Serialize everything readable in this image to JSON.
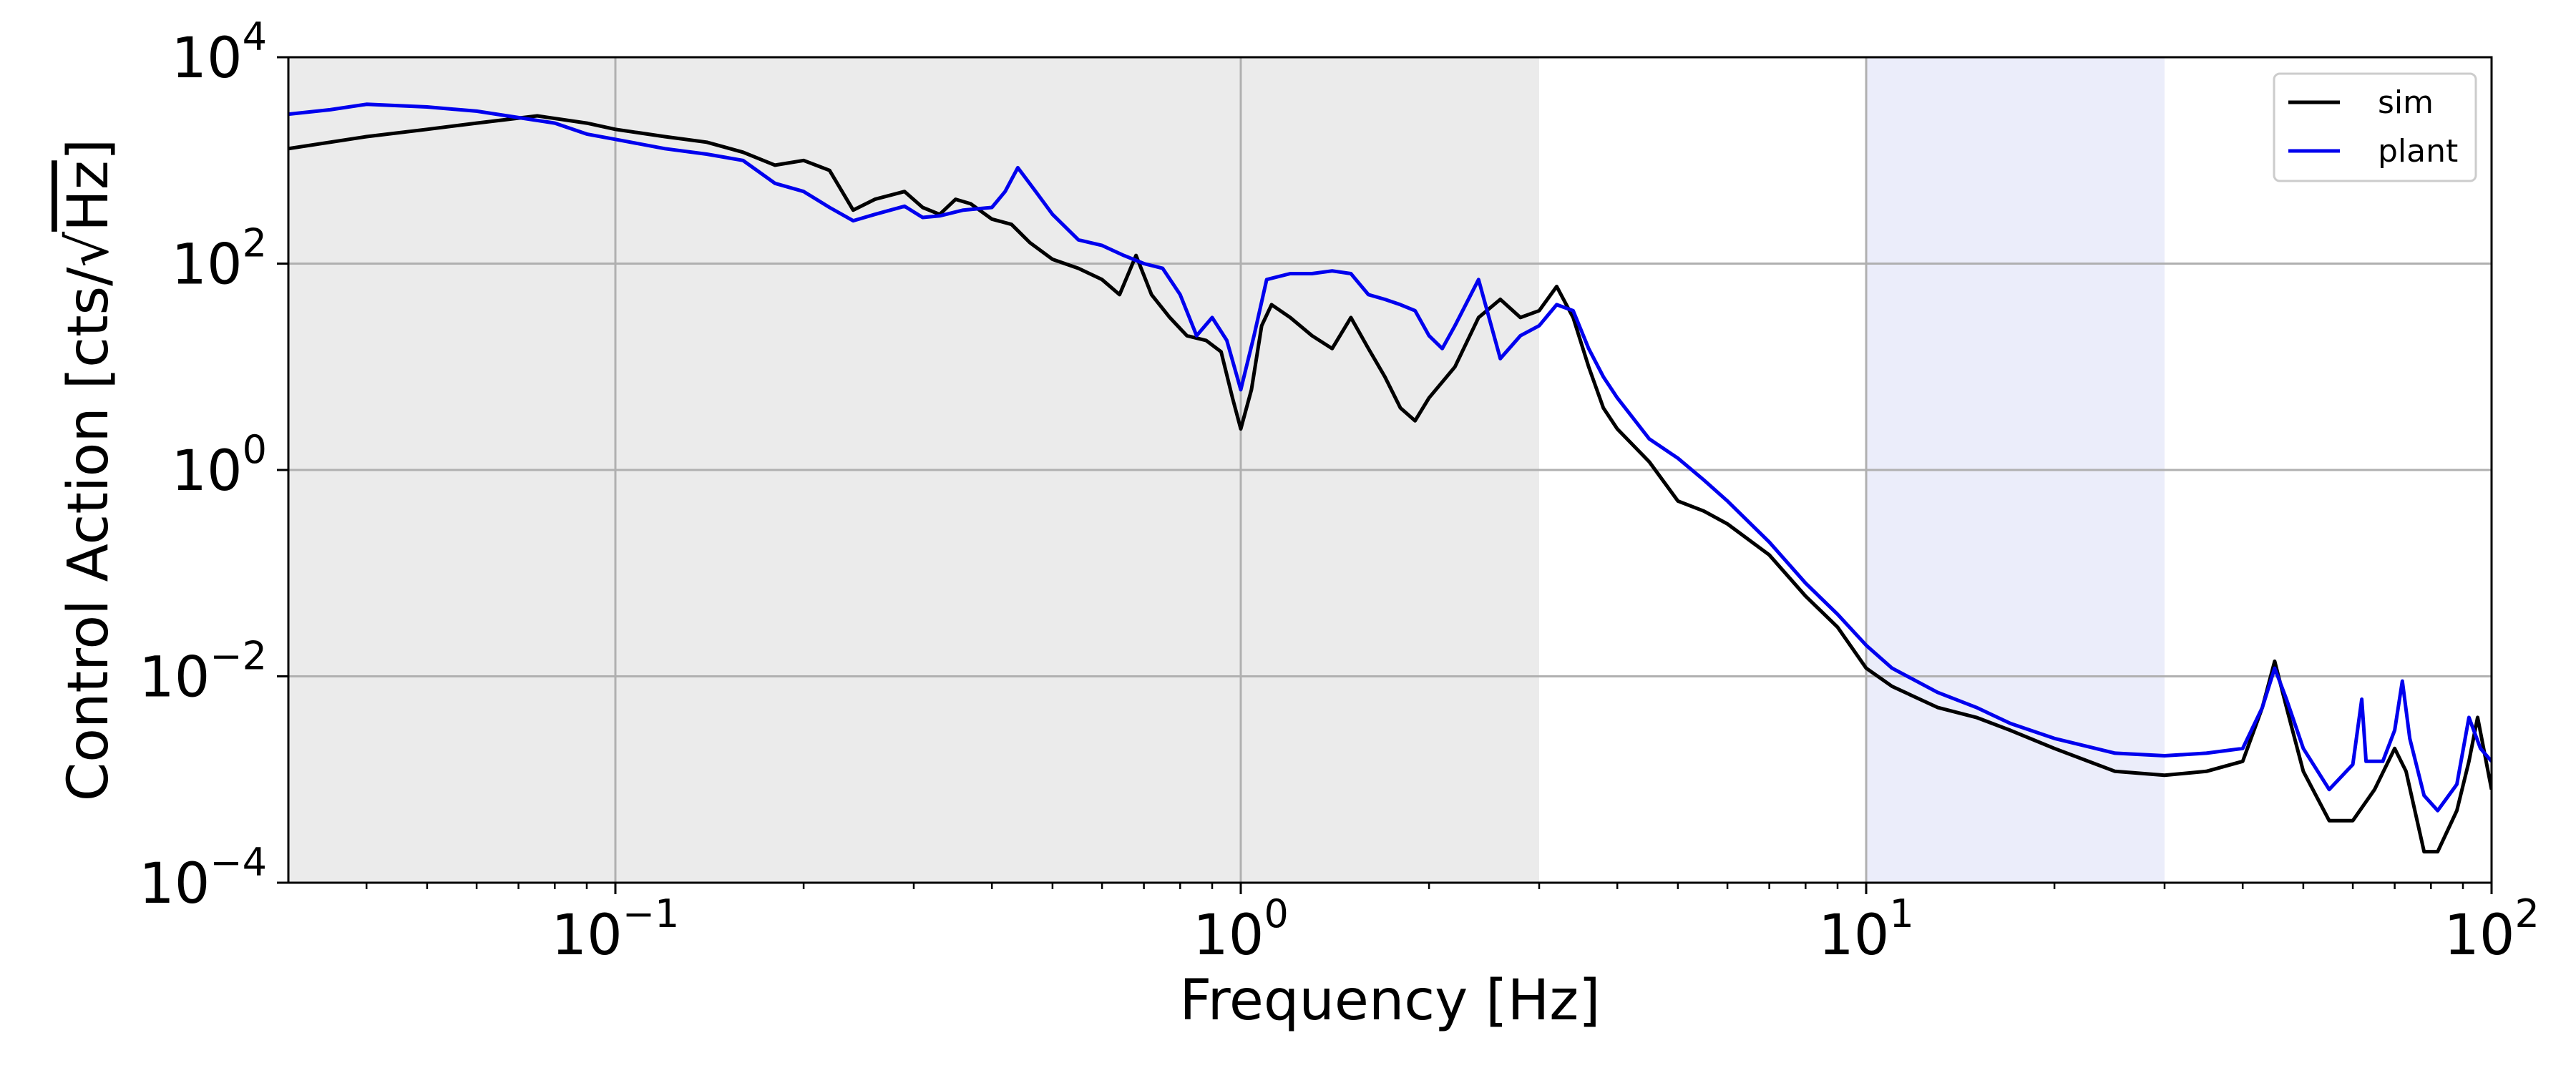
{
  "chart_data": {
    "type": "line",
    "xscale": "log",
    "yscale": "log",
    "xlim": [
      0.03,
      100
    ],
    "ylim": [
      0.0001,
      10000
    ],
    "grid": true,
    "legend_position": "top-right",
    "xlabel": "Frequency [Hz]",
    "ylabel": {
      "prefix": "Control Action [cts/",
      "radical": "√",
      "radicand": "Hz",
      "suffix": "]"
    },
    "x_ticks": [
      {
        "value": 0.1,
        "base": "10",
        "exp": "−1"
      },
      {
        "value": 1,
        "base": "10",
        "exp": "0"
      },
      {
        "value": 10,
        "base": "10",
        "exp": "1"
      },
      {
        "value": 100,
        "base": "10",
        "exp": "2"
      }
    ],
    "y_ticks": [
      {
        "value": 0.0001,
        "base": "10",
        "exp": "−4"
      },
      {
        "value": 0.01,
        "base": "10",
        "exp": "−2"
      },
      {
        "value": 1,
        "base": "10",
        "exp": "0"
      },
      {
        "value": 100,
        "base": "10",
        "exp": "2"
      },
      {
        "value": 10000,
        "base": "10",
        "exp": "4"
      }
    ],
    "shaded_regions": [
      {
        "x_from": 0.03,
        "x_to": 3,
        "color": "#ebebeb"
      },
      {
        "x_from": 10,
        "x_to": 30,
        "color": "#ebedfa"
      }
    ],
    "series": [
      {
        "name": "sim",
        "color": "#000000",
        "points": [
          [
            0.03,
            1300
          ],
          [
            0.04,
            1700
          ],
          [
            0.05,
            2000
          ],
          [
            0.06,
            2300
          ],
          [
            0.075,
            2700
          ],
          [
            0.09,
            2300
          ],
          [
            0.1,
            2000
          ],
          [
            0.12,
            1700
          ],
          [
            0.14,
            1500
          ],
          [
            0.16,
            1200
          ],
          [
            0.18,
            900
          ],
          [
            0.2,
            1000
          ],
          [
            0.22,
            800
          ],
          [
            0.24,
            330
          ],
          [
            0.26,
            420
          ],
          [
            0.29,
            500
          ],
          [
            0.31,
            350
          ],
          [
            0.33,
            300
          ],
          [
            0.35,
            420
          ],
          [
            0.37,
            380
          ],
          [
            0.4,
            270
          ],
          [
            0.43,
            240
          ],
          [
            0.46,
            160
          ],
          [
            0.5,
            110
          ],
          [
            0.55,
            90
          ],
          [
            0.6,
            70
          ],
          [
            0.64,
            50
          ],
          [
            0.68,
            120
          ],
          [
            0.72,
            50
          ],
          [
            0.77,
            30
          ],
          [
            0.82,
            20
          ],
          [
            0.88,
            18
          ],
          [
            0.93,
            14
          ],
          [
            0.97,
            5
          ],
          [
            1.0,
            2.5
          ],
          [
            1.04,
            6
          ],
          [
            1.08,
            25
          ],
          [
            1.12,
            40
          ],
          [
            1.2,
            30
          ],
          [
            1.3,
            20
          ],
          [
            1.4,
            15
          ],
          [
            1.5,
            30
          ],
          [
            1.6,
            15
          ],
          [
            1.7,
            8
          ],
          [
            1.8,
            4
          ],
          [
            1.9,
            3
          ],
          [
            2.0,
            5
          ],
          [
            2.2,
            10
          ],
          [
            2.4,
            30
          ],
          [
            2.6,
            45
          ],
          [
            2.8,
            30
          ],
          [
            3.0,
            35
          ],
          [
            3.2,
            60
          ],
          [
            3.4,
            30
          ],
          [
            3.6,
            10
          ],
          [
            3.8,
            4
          ],
          [
            4.0,
            2.5
          ],
          [
            4.5,
            1.2
          ],
          [
            5,
            0.5
          ],
          [
            5.5,
            0.4
          ],
          [
            6,
            0.3
          ],
          [
            7,
            0.15
          ],
          [
            8,
            0.06
          ],
          [
            9,
            0.03
          ],
          [
            10,
            0.012
          ],
          [
            11,
            0.008
          ],
          [
            13,
            0.005
          ],
          [
            15,
            0.004
          ],
          [
            17,
            0.003
          ],
          [
            20,
            0.002
          ],
          [
            25,
            0.0012
          ],
          [
            30,
            0.0011
          ],
          [
            35,
            0.0012
          ],
          [
            40,
            0.0015
          ],
          [
            43,
            0.005
          ],
          [
            45,
            0.014
          ],
          [
            47,
            0.005
          ],
          [
            50,
            0.0012
          ],
          [
            55,
            0.0004
          ],
          [
            60,
            0.0004
          ],
          [
            65,
            0.0008
          ],
          [
            70,
            0.002
          ],
          [
            73,
            0.0012
          ],
          [
            78,
            0.0002
          ],
          [
            82,
            0.0002
          ],
          [
            88,
            0.0005
          ],
          [
            92,
            0.0015
          ],
          [
            95,
            0.004
          ],
          [
            100,
            0.0008
          ]
        ]
      },
      {
        "name": "plant",
        "color": "#0000ee",
        "points": [
          [
            0.03,
            2800
          ],
          [
            0.035,
            3100
          ],
          [
            0.04,
            3500
          ],
          [
            0.05,
            3300
          ],
          [
            0.06,
            3000
          ],
          [
            0.07,
            2600
          ],
          [
            0.08,
            2300
          ],
          [
            0.09,
            1800
          ],
          [
            0.1,
            1600
          ],
          [
            0.12,
            1300
          ],
          [
            0.14,
            1150
          ],
          [
            0.16,
            1000
          ],
          [
            0.18,
            600
          ],
          [
            0.2,
            500
          ],
          [
            0.22,
            350
          ],
          [
            0.24,
            260
          ],
          [
            0.26,
            300
          ],
          [
            0.29,
            360
          ],
          [
            0.31,
            280
          ],
          [
            0.33,
            290
          ],
          [
            0.36,
            330
          ],
          [
            0.4,
            350
          ],
          [
            0.42,
            500
          ],
          [
            0.44,
            850
          ],
          [
            0.47,
            500
          ],
          [
            0.5,
            300
          ],
          [
            0.55,
            170
          ],
          [
            0.6,
            150
          ],
          [
            0.65,
            120
          ],
          [
            0.7,
            100
          ],
          [
            0.75,
            90
          ],
          [
            0.8,
            50
          ],
          [
            0.85,
            20
          ],
          [
            0.9,
            30
          ],
          [
            0.95,
            18
          ],
          [
            1.0,
            6
          ],
          [
            1.05,
            20
          ],
          [
            1.1,
            70
          ],
          [
            1.2,
            80
          ],
          [
            1.3,
            80
          ],
          [
            1.4,
            85
          ],
          [
            1.5,
            80
          ],
          [
            1.6,
            50
          ],
          [
            1.7,
            45
          ],
          [
            1.8,
            40
          ],
          [
            1.9,
            35
          ],
          [
            2.0,
            20
          ],
          [
            2.1,
            15
          ],
          [
            2.2,
            25
          ],
          [
            2.4,
            70
          ],
          [
            2.6,
            12
          ],
          [
            2.8,
            20
          ],
          [
            3.0,
            25
          ],
          [
            3.2,
            40
          ],
          [
            3.4,
            35
          ],
          [
            3.6,
            15
          ],
          [
            3.8,
            8
          ],
          [
            4.0,
            5
          ],
          [
            4.5,
            2
          ],
          [
            5,
            1.3
          ],
          [
            5.5,
            0.8
          ],
          [
            6,
            0.5
          ],
          [
            7,
            0.2
          ],
          [
            8,
            0.08
          ],
          [
            9,
            0.04
          ],
          [
            10,
            0.02
          ],
          [
            11,
            0.012
          ],
          [
            13,
            0.007
          ],
          [
            15,
            0.005
          ],
          [
            17,
            0.0035
          ],
          [
            20,
            0.0025
          ],
          [
            25,
            0.0018
          ],
          [
            30,
            0.0017
          ],
          [
            35,
            0.0018
          ],
          [
            40,
            0.002
          ],
          [
            43,
            0.005
          ],
          [
            45,
            0.012
          ],
          [
            47,
            0.006
          ],
          [
            50,
            0.002
          ],
          [
            55,
            0.0008
          ],
          [
            60,
            0.0014
          ],
          [
            62,
            0.006
          ],
          [
            63,
            0.0015
          ],
          [
            67,
            0.0015
          ],
          [
            70,
            0.003
          ],
          [
            72,
            0.009
          ],
          [
            74,
            0.0025
          ],
          [
            78,
            0.0007
          ],
          [
            82,
            0.0005
          ],
          [
            88,
            0.0009
          ],
          [
            92,
            0.004
          ],
          [
            96,
            0.002
          ],
          [
            100,
            0.0015
          ]
        ]
      }
    ]
  }
}
